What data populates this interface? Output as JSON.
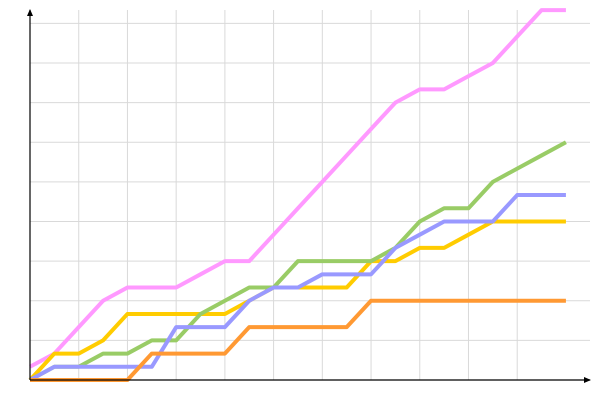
{
  "chart_data": {
    "type": "line",
    "title": "",
    "xlabel": "",
    "ylabel": "",
    "x": [
      0,
      1,
      2,
      3,
      4,
      5,
      6,
      7,
      8,
      9,
      10,
      11,
      12,
      13,
      14,
      15,
      16,
      17,
      18,
      19,
      20,
      21,
      22
    ],
    "xlim": [
      0,
      23
    ],
    "ylim": [
      0,
      28
    ],
    "x_grid_step": 2,
    "y_grid_step": 3,
    "grid": true,
    "legend": "none",
    "series": [
      {
        "color": "#ff99ff",
        "values": [
          1,
          2,
          4,
          6,
          7,
          7,
          7,
          8,
          9,
          9,
          11,
          13,
          15,
          17,
          19,
          21,
          22,
          22,
          23,
          24,
          26,
          28,
          28
        ]
      },
      {
        "color": "#ffcc00",
        "values": [
          0,
          2,
          2,
          3,
          5,
          5,
          5,
          5,
          5,
          6,
          7,
          7,
          7,
          7,
          9,
          9,
          10,
          10,
          11,
          12,
          12,
          12,
          12
        ]
      },
      {
        "color": "#99cc66",
        "values": [
          0,
          1,
          1,
          2,
          2,
          3,
          3,
          5,
          6,
          7,
          7,
          9,
          9,
          9,
          9,
          10,
          12,
          13,
          13,
          15,
          16,
          17,
          18
        ]
      },
      {
        "color": "#9999ff",
        "values": [
          0,
          1,
          1,
          1,
          1,
          1,
          4,
          4,
          4,
          6,
          7,
          7,
          8,
          8,
          8,
          10,
          11,
          12,
          12,
          12,
          14,
          14,
          14
        ]
      },
      {
        "color": "#ff9933",
        "values": [
          0,
          0,
          0,
          0,
          0,
          2,
          2,
          2,
          2,
          4,
          4,
          4,
          4,
          4,
          6,
          6,
          6,
          6,
          6,
          6,
          6,
          6,
          6
        ]
      }
    ]
  }
}
